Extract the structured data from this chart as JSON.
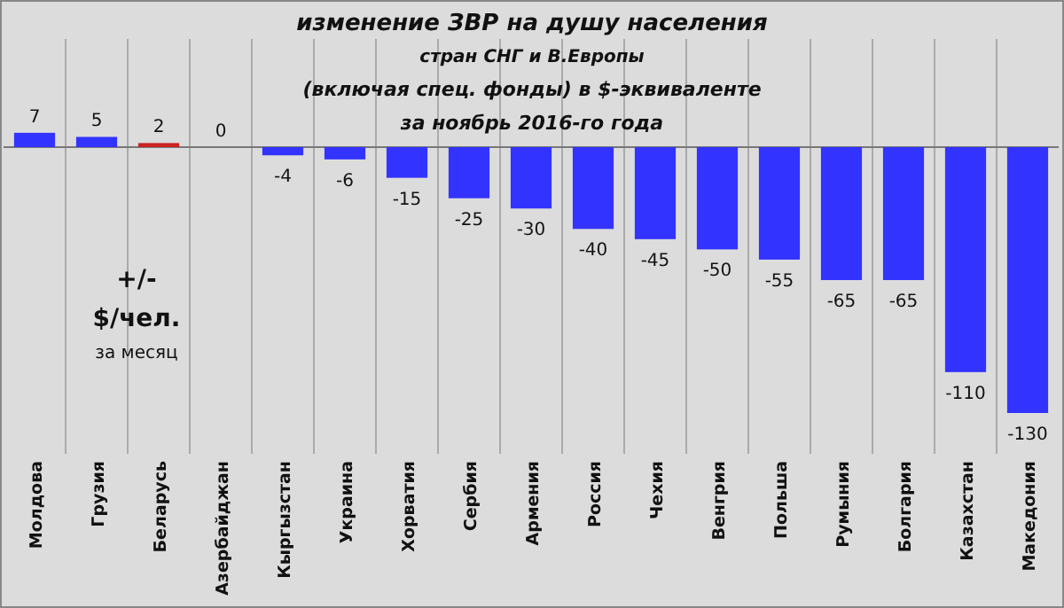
{
  "chart_data": {
    "type": "bar",
    "title": "изменение  ЗВР на душу населения",
    "subtitle": "стран СНГ и В.Европы\n(включая  спец. фонды) в $-эквиваленте\nза ноябрь 2016-го года",
    "categories": [
      "Молдова",
      "Грузия",
      "Беларусь",
      "Азербайджан",
      "Кыргызстан",
      "Украина",
      "Хорватия",
      "Сербия",
      "Армения",
      "Россия",
      "Чехия",
      "Венгрия",
      "Польша",
      "Румыния",
      "Болгария",
      "Казахстан",
      "Македония"
    ],
    "values": [
      7,
      5,
      2,
      0,
      -4,
      -6,
      -15,
      -25,
      -30,
      -40,
      -45,
      -50,
      -55,
      -65,
      -65,
      -110,
      -130
    ],
    "colors": [
      "#3333ff",
      "#3333ff",
      "#cc2222",
      "#3333ff",
      "#3333ff",
      "#3333ff",
      "#3333ff",
      "#3333ff",
      "#3333ff",
      "#3333ff",
      "#3333ff",
      "#3333ff",
      "#3333ff",
      "#3333ff",
      "#3333ff",
      "#3333ff",
      "#3333ff"
    ],
    "data_labels": true,
    "grid": "x",
    "annotations": [
      "+/-",
      "$/чел.",
      "за месяц"
    ]
  }
}
